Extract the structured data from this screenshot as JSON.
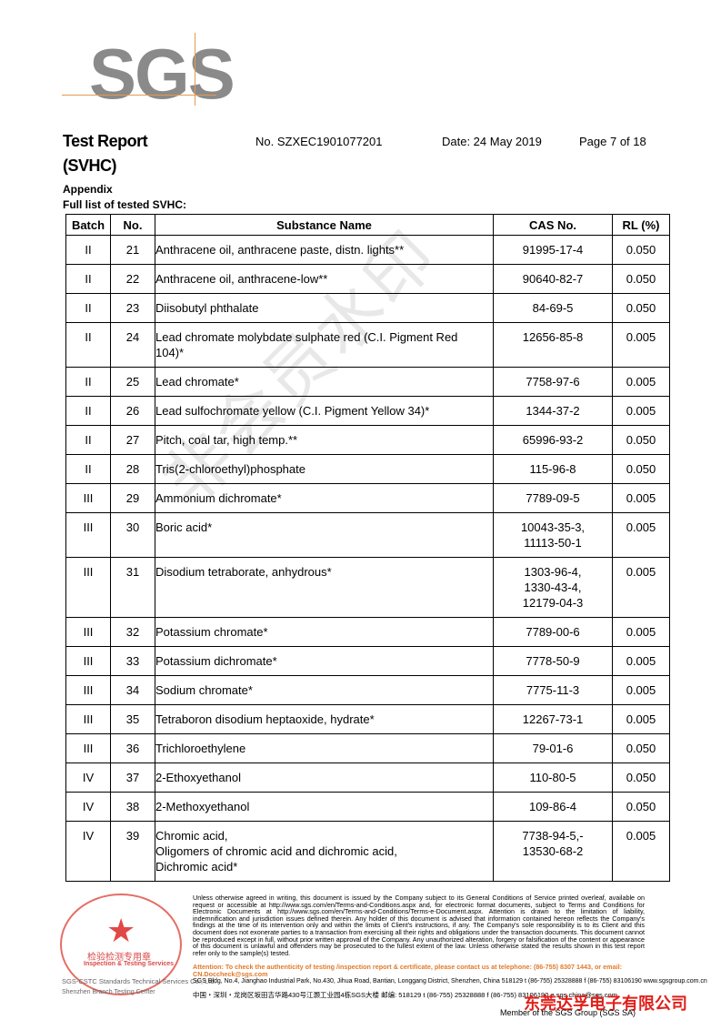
{
  "logo": "SGS",
  "header": {
    "title": "Test Report",
    "subtitle": "(SVHC)",
    "report_no": "No. SZXEC1901077201",
    "date": "Date: 24 May 2019",
    "page": "Page 7 of 18"
  },
  "section": {
    "title": "Appendix",
    "subtitle": "Full list of tested SVHC:"
  },
  "table": {
    "columns": [
      "Batch",
      "No.",
      "Substance Name",
      "CAS No.",
      "RL (%)"
    ],
    "rows": [
      [
        "II",
        "21",
        [
          "Anthracene oil, anthracene paste, distn. lights**"
        ],
        [
          "91995-17-4"
        ],
        "0.050"
      ],
      [
        "II",
        "22",
        [
          "Anthracene oil, anthracene-low**"
        ],
        [
          "90640-82-7"
        ],
        "0.050"
      ],
      [
        "II",
        "23",
        [
          "Diisobutyl phthalate"
        ],
        [
          "84-69-5"
        ],
        "0.050"
      ],
      [
        "II",
        "24",
        [
          "Lead chromate molybdate sulphate red (C.I. Pigment Red",
          "104)*"
        ],
        [
          "12656-85-8"
        ],
        "0.005"
      ],
      [
        "II",
        "25",
        [
          "Lead chromate*"
        ],
        [
          "7758-97-6"
        ],
        "0.005"
      ],
      [
        "II",
        "26",
        [
          "Lead sulfochromate yellow (C.I. Pigment Yellow 34)*"
        ],
        [
          "1344-37-2"
        ],
        "0.005"
      ],
      [
        "II",
        "27",
        [
          "Pitch, coal tar, high temp.**"
        ],
        [
          "65996-93-2"
        ],
        "0.050"
      ],
      [
        "II",
        "28",
        [
          "Tris(2-chloroethyl)phosphate"
        ],
        [
          "115-96-8"
        ],
        "0.050"
      ],
      [
        "III",
        "29",
        [
          "Ammonium dichromate*"
        ],
        [
          "7789-09-5"
        ],
        "0.005"
      ],
      [
        "III",
        "30",
        [
          "Boric acid*"
        ],
        [
          "10043-35-3,",
          "11113-50-1"
        ],
        "0.005"
      ],
      [
        "III",
        "31",
        [
          "Disodium tetraborate, anhydrous*"
        ],
        [
          "1303-96-4,",
          "1330-43-4,",
          "12179-04-3"
        ],
        "0.005"
      ],
      [
        "III",
        "32",
        [
          "Potassium chromate*"
        ],
        [
          "7789-00-6"
        ],
        "0.005"
      ],
      [
        "III",
        "33",
        [
          "Potassium dichromate*"
        ],
        [
          "7778-50-9"
        ],
        "0.005"
      ],
      [
        "III",
        "34",
        [
          "Sodium chromate*"
        ],
        [
          "7775-11-3"
        ],
        "0.005"
      ],
      [
        "III",
        "35",
        [
          "Tetraboron disodium heptaoxide, hydrate*"
        ],
        [
          "12267-73-1"
        ],
        "0.005"
      ],
      [
        "III",
        "36",
        [
          "Trichloroethylene"
        ],
        [
          "79-01-6"
        ],
        "0.050"
      ],
      [
        "IV",
        "37",
        [
          "2-Ethoxyethanol"
        ],
        [
          "110-80-5"
        ],
        "0.050"
      ],
      [
        "IV",
        "38",
        [
          "2-Methoxyethanol"
        ],
        [
          "109-86-4"
        ],
        "0.050"
      ],
      [
        "IV",
        "39",
        [
          "Chromic acid,",
          "Oligomers of chromic acid and dichromic acid,",
          "Dichromic acid*"
        ],
        [
          "7738-94-5,-",
          "13530-68-2"
        ],
        "0.005"
      ]
    ]
  },
  "watermark": "非会员水印",
  "footer": {
    "disclaimer": "Unless otherwise agreed in writing, this document is issued by the Company subject to its General Conditions of Service printed overleaf, available on request or accessible at http://www.sgs.com/en/Terms-and-Conditions.aspx and, for electronic format documents, subject to Terms and Conditions for Electronic Documents at http://www.sgs.com/en/Terms-and-Conditions/Terms-e-Document.aspx. Attention is drawn to the limitation of liability, indemnification and jurisdiction issues defined therein. Any holder of this document is advised that information contained hereon reflects the Company's findings at the time of its intervention only and within the limits of Client's instructions, if any. The Company's sole responsibility is to its Client and this document does not exonerate parties to a transaction from exercising all their rights and obligations under the transaction documents. This document cannot be reproduced except in full, without prior written approval of the Company. Any unauthorized alteration, forgery or falsification of the content or appearance of this document is unlawful and offenders may be prosecuted to the fullest extent of the law. Unless otherwise stated the results shown in this test report refer only to the sample(s) tested.",
    "attention": "Attention: To check the authenticity of testing /inspection report & certificate, please contact us at telephone: (86-755) 8307 1443, or email: CN.Doccheck@sgs.com",
    "address_en": "SGS Bldg, No.4, Jianghao Industrial Park, No.430, Jihua Road, Bantian, Longgang District, Shenzhen, China 518129   t (86-755) 25328888   f (86-755) 83106190   www.sgsgroup.com.cn",
    "address_cn": "中国・深圳・龙岗区坂田吉华路430号江灏工业园4栋SGS大楼   邮编: 518129   t (86-755) 25328888   f (86-755) 83106190   e sgs.china@sgs.com",
    "company_en": "SGS-CSTC Standards Technical Services Co., Ltd.",
    "branch_en": "Shenzhen Branch Testing Center",
    "stamp_cn": "检验检测专用章",
    "stamp_en": "Inspection & Testing Services",
    "overlay": "东莞达孚电子有限公司",
    "member": "Member of the SGS Group (SGS SA)"
  }
}
